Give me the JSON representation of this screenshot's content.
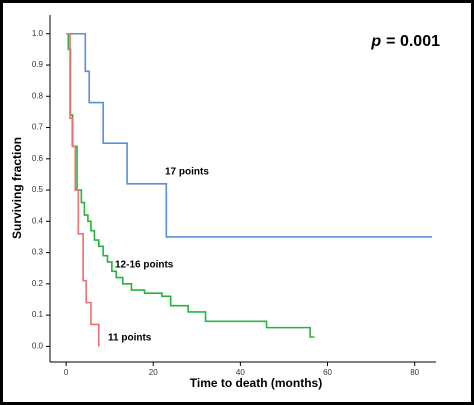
{
  "chart_data": {
    "type": "step",
    "annotation": {
      "symbol": "p",
      "text": "= 0.001"
    },
    "x_label": "Time to death (months)",
    "y_label": "Surviving fraction",
    "xlim": [
      -3.7,
      84.9
    ],
    "ylim": [
      -0.05,
      1.06
    ],
    "xticks": [
      0,
      20,
      40,
      60,
      80
    ],
    "yticks": [
      {
        "value": 0,
        "label": "0.0"
      },
      0.1,
      0.2,
      0.3,
      0.4,
      0.5,
      0.6,
      0.7,
      0.8,
      0.9,
      {
        "value": 1,
        "label": "1.0"
      }
    ],
    "grid": false,
    "series": [
      {
        "name": "17 points",
        "color": "#5b8fd6",
        "x": [
          0,
          4.4,
          5.3,
          8.5,
          14,
          23,
          84
        ],
        "values": [
          1.0,
          0.88,
          0.78,
          0.65,
          0.52,
          0.35,
          0.35
        ]
      },
      {
        "name": "12-16 points",
        "color": "#27b33c",
        "x": [
          0,
          0.5,
          1.0,
          1.5,
          2.5,
          3.5,
          4.2,
          5,
          5.7,
          6.5,
          7.5,
          8.5,
          9.5,
          10.5,
          11.5,
          13,
          15,
          18,
          22,
          24,
          28,
          32,
          46,
          56,
          57
        ],
        "values": [
          1.0,
          0.95,
          0.74,
          0.64,
          0.5,
          0.46,
          0.42,
          0.4,
          0.37,
          0.34,
          0.32,
          0.29,
          0.27,
          0.24,
          0.22,
          0.2,
          0.18,
          0.17,
          0.16,
          0.13,
          0.11,
          0.08,
          0.06,
          0.03,
          0.03
        ]
      },
      {
        "name": "11 points",
        "color": "#f07070",
        "x": [
          0,
          0.9,
          1.4,
          2.1,
          2.8,
          3.9,
          4.6,
          5.7,
          7.5
        ],
        "values": [
          1.0,
          0.73,
          0.64,
          0.5,
          0.36,
          0.21,
          0.14,
          0.07,
          0.0
        ]
      }
    ]
  }
}
